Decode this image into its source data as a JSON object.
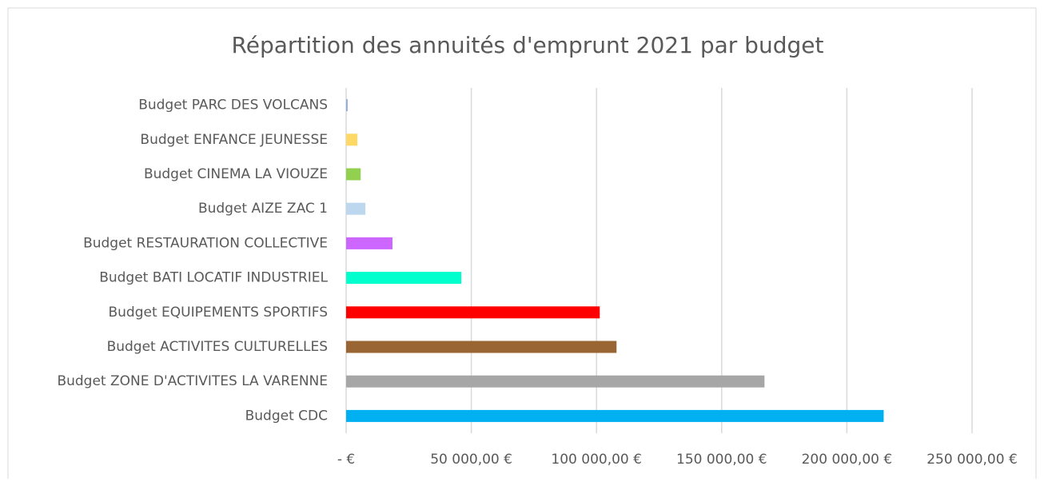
{
  "chart_data": {
    "type": "hbar",
    "title": "Répartition des annuités d'emprunt 2021 par budget",
    "categories": [
      "Budget PARC DES VOLCANS",
      "Budget ENFANCE JEUNESSE",
      "Budget CINEMA LA VIOUZE",
      "Budget AIZE ZAC 1",
      "Budget RESTAURATION COLLECTIVE",
      "Budget BATI LOCATIF INDUSTRIEL",
      "Budget EQUIPEMENTS SPORTIFS",
      "Budget ACTIVITES CULTURELLES",
      "Budget ZONE D'ACTIVITES LA VARENNE",
      "Budget CDC"
    ],
    "values": [
      600,
      4500,
      5800,
      7700,
      18500,
      46000,
      101300,
      108000,
      167100,
      214700
    ],
    "colors": [
      "#8faadc",
      "#ffd966",
      "#92d050",
      "#bdd7ee",
      "#cc66ff",
      "#00ffcc",
      "#ff0000",
      "#996633",
      "#a6a6a6",
      "#00b0f0"
    ],
    "xlim": [
      0,
      250000
    ],
    "xticks": [
      {
        "value": 0,
        "label": "-  €"
      },
      {
        "value": 50000,
        "label": "50 000,00 €"
      },
      {
        "value": 100000,
        "label": "100 000,00 €"
      },
      {
        "value": 150000,
        "label": "150 000,00 €"
      },
      {
        "value": 200000,
        "label": "200 000,00 €"
      },
      {
        "value": 250000,
        "label": "250 000,00 €"
      }
    ],
    "grid": true
  }
}
